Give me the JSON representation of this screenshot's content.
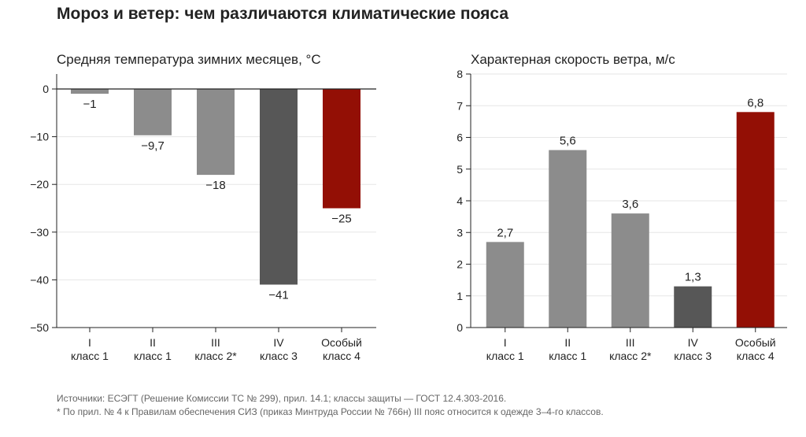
{
  "title": "Мороз и ветер: чем различаются климатические пояса",
  "notes": [
    "Источники: ЕСЭГТ (Решение Комиссии ТС № 299), прил. 14.1; классы защиты — ГОСТ 12.4.303-2016.",
    "* По прил. № 4 к Правилам обеспечения СИЗ (приказ Минтруда России № 766н) III пояс относится к одежде 3–4-го классов."
  ],
  "colors": {
    "grey": "#8c8c8c",
    "dark": "#575757",
    "red": "#930f05",
    "grid": "#e6e6e6",
    "axis": "#222222"
  },
  "chart_data": [
    {
      "type": "bar",
      "title": "Средняя температура зимних месяцев, °C",
      "categories": [
        [
          "I",
          "класс 1"
        ],
        [
          "II",
          "класс 1"
        ],
        [
          "III",
          "класс 2*"
        ],
        [
          "IV",
          "класс 3"
        ],
        [
          "Особый",
          "класс 4"
        ]
      ],
      "values": [
        -1,
        -9.7,
        -18,
        -41,
        -25
      ],
      "value_labels": [
        "−1",
        "−9,7",
        "−18",
        "−41",
        "−25"
      ],
      "bar_colors": [
        "grey",
        "grey",
        "grey",
        "dark",
        "red"
      ],
      "ylim": [
        -50,
        0
      ],
      "yticks": [
        0,
        -10,
        -20,
        -30,
        -40,
        -50
      ],
      "ytick_labels": [
        "0",
        "−10",
        "−20",
        "−30",
        "−40",
        "−50"
      ],
      "grid": true,
      "zero_line": true
    },
    {
      "type": "bar",
      "title": "Характерная скорость ветра, м/с",
      "categories": [
        [
          "I",
          "класс 1"
        ],
        [
          "II",
          "класс 1"
        ],
        [
          "III",
          "класс 2*"
        ],
        [
          "IV",
          "класс 3"
        ],
        [
          "Особый",
          "класс 4"
        ]
      ],
      "values": [
        2.7,
        5.6,
        3.6,
        1.3,
        6.8
      ],
      "value_labels": [
        "2,7",
        "5,6",
        "3,6",
        "1,3",
        "6,8"
      ],
      "bar_colors": [
        "grey",
        "grey",
        "grey",
        "dark",
        "red"
      ],
      "ylim": [
        0,
        8
      ],
      "yticks": [
        0,
        1,
        2,
        3,
        4,
        5,
        6,
        7,
        8
      ],
      "ytick_labels": [
        "0",
        "1",
        "2",
        "3",
        "4",
        "5",
        "6",
        "7",
        "8"
      ],
      "grid": true
    }
  ]
}
